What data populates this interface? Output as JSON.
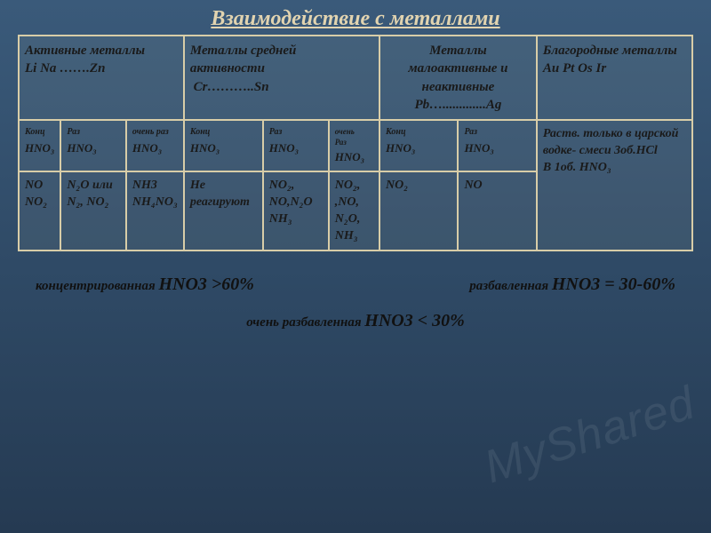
{
  "title": "Взаимодействие с металлами",
  "headers": {
    "col1": {
      "line1": "Активные металлы",
      "line2": "Li  Na  …….Zn"
    },
    "col2": {
      "line1": "Металлы средней активности",
      "line2": "Cr………..Sn"
    },
    "col3": {
      "line1": "Металлы малоактивные и неактивные",
      "line2": "Pb….............Ag"
    },
    "col4": {
      "line1": "Благородные металлы",
      "line2": "Au  Pt  Os Ir"
    }
  },
  "acid_labels": {
    "konc": "Конц",
    "raz": "Раз",
    "vraz": "очень раз",
    "formula": "HNO₃"
  },
  "row3": {
    "c1": "NO\nNO₂",
    "c2": "N₂O или N₂, NO₂",
    "c3": "NH3\nNH₄NO₃",
    "c4": "Не реагируют",
    "c5": "NO₂,\nNO,N₂O NH₃",
    "c6": "NO₂,\n,NO, N₂O,\nNH₃",
    "c7": "NO₂",
    "c8": "NO",
    "c9": "Раств. только в царской водке- смеси 3об.HCl\nВ 1об. HNO₃"
  },
  "footer": {
    "left": {
      "pre": "концентрированная ",
      "f": "HNO3 >60%"
    },
    "right": {
      "pre": "разбавленная ",
      "f": "HNO3 = 30-60%"
    },
    "bottom": {
      "pre": "очень разбавленная ",
      "f": "HNO3 <  30%"
    }
  },
  "watermark": "MyShared",
  "colors": {
    "border": "#d8cda8",
    "title": "#e2d4b0",
    "bg_top": "#3a5a7a",
    "bg_bot": "#253a52"
  }
}
